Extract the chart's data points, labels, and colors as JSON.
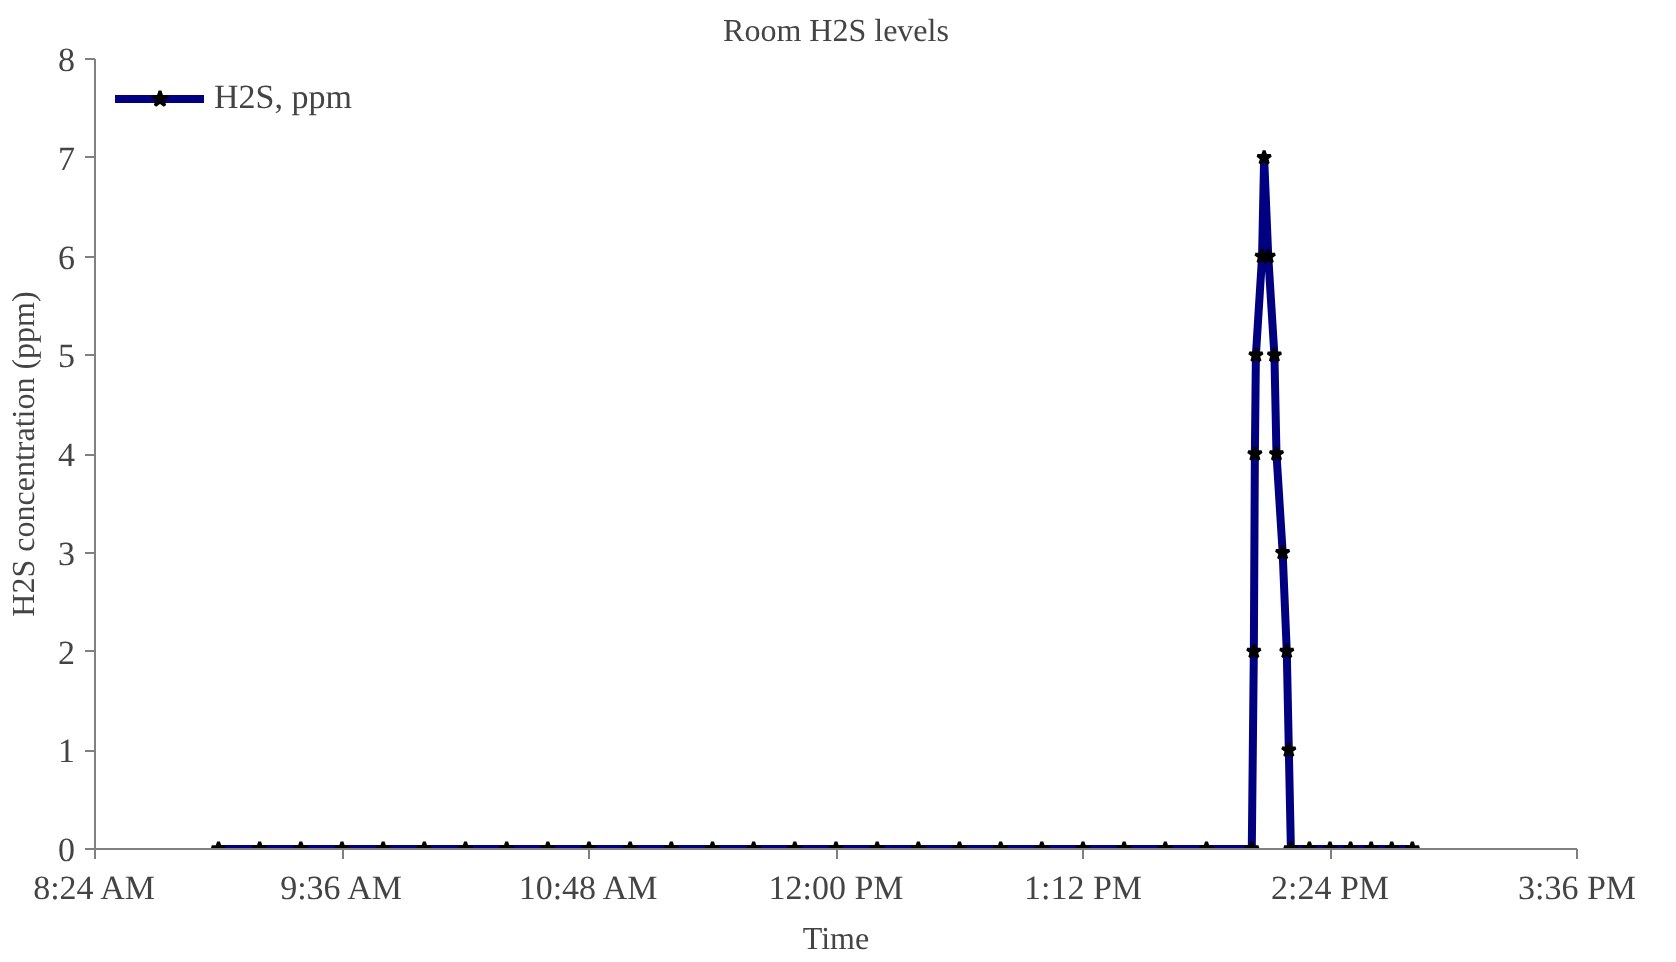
{
  "chart_data": {
    "type": "line",
    "title": "Room H2S levels",
    "xlabel": "Time",
    "ylabel": "H2S concentration (ppm)",
    "xlim": [
      8.4,
      15.6
    ],
    "xticks": [
      {
        "value": 8.4,
        "label": "8:24 AM"
      },
      {
        "value": 9.6,
        "label": "9:36 AM"
      },
      {
        "value": 10.8,
        "label": "10:48 AM"
      },
      {
        "value": 12.0,
        "label": "12:00 PM"
      },
      {
        "value": 13.2,
        "label": "1:12 PM"
      },
      {
        "value": 14.4,
        "label": "2:24 PM"
      },
      {
        "value": 15.6,
        "label": "3:36 PM"
      }
    ],
    "ylim": [
      0,
      8
    ],
    "yticks": [
      0,
      1,
      2,
      3,
      4,
      5,
      6,
      7,
      8
    ],
    "grid": false,
    "legend": "top left",
    "marker": "star",
    "line_style": "solid",
    "series": [
      {
        "name": "H2S, ppm",
        "color": "#000080",
        "x": [
          9.0,
          9.2,
          9.4,
          9.6,
          9.8,
          10.0,
          10.2,
          10.4,
          10.6,
          10.8,
          11.0,
          11.2,
          11.4,
          11.6,
          11.8,
          12.0,
          12.2,
          12.4,
          12.6,
          12.8,
          13.0,
          13.2,
          13.4,
          13.6,
          13.8,
          14.02,
          14.03,
          14.035,
          14.04,
          14.07,
          14.08,
          14.1,
          14.13,
          14.14,
          14.17,
          14.19,
          14.2,
          14.21,
          14.3,
          14.4,
          14.5,
          14.6,
          14.7,
          14.8
        ],
        "values": [
          0,
          0,
          0,
          0,
          0,
          0,
          0,
          0,
          0,
          0,
          0,
          0,
          0,
          0,
          0,
          0,
          0,
          0,
          0,
          0,
          0,
          0,
          0,
          0,
          0,
          0,
          2,
          4,
          5,
          6,
          7,
          6,
          5,
          4,
          3,
          2,
          1,
          0,
          0,
          0,
          0,
          0,
          0,
          0
        ]
      }
    ]
  }
}
